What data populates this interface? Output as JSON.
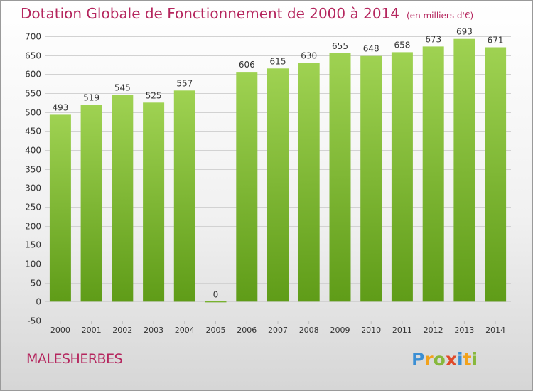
{
  "header": {
    "title": "Dotation Globale de Fonctionnement de 2000 à 2014",
    "unit": "(en milliers d'€)"
  },
  "footer": {
    "city": "MALESHERBES",
    "logo_letters": [
      {
        "ch": "P",
        "color": "#3b8fd4"
      },
      {
        "ch": "r",
        "color": "#f2a21b"
      },
      {
        "ch": "o",
        "color": "#87b83c"
      },
      {
        "ch": "x",
        "color": "#e04a2a"
      },
      {
        "ch": "i",
        "color": "#3b8fd4"
      },
      {
        "ch": "t",
        "color": "#f2a21b"
      },
      {
        "ch": "i",
        "color": "#87b83c"
      }
    ]
  },
  "colors": {
    "bar_top": "#9fd252",
    "bar_bottom": "#5f9c18",
    "title": "#b5265e",
    "grid": "#d2d2d2",
    "axis_text": "#333333"
  },
  "chart_data": {
    "type": "bar",
    "categories": [
      "2000",
      "2001",
      "2002",
      "2003",
      "2004",
      "2005",
      "2006",
      "2007",
      "2008",
      "2009",
      "2010",
      "2011",
      "2012",
      "2013",
      "2014"
    ],
    "values": [
      493,
      519,
      545,
      525,
      557,
      0,
      606,
      615,
      630,
      655,
      648,
      658,
      673,
      693,
      671
    ],
    "ylim": [
      -50,
      700
    ],
    "yticks": [
      -50,
      0,
      50,
      100,
      150,
      200,
      250,
      300,
      350,
      400,
      450,
      500,
      550,
      600,
      650,
      700
    ],
    "grid": true,
    "data_labels": true
  }
}
